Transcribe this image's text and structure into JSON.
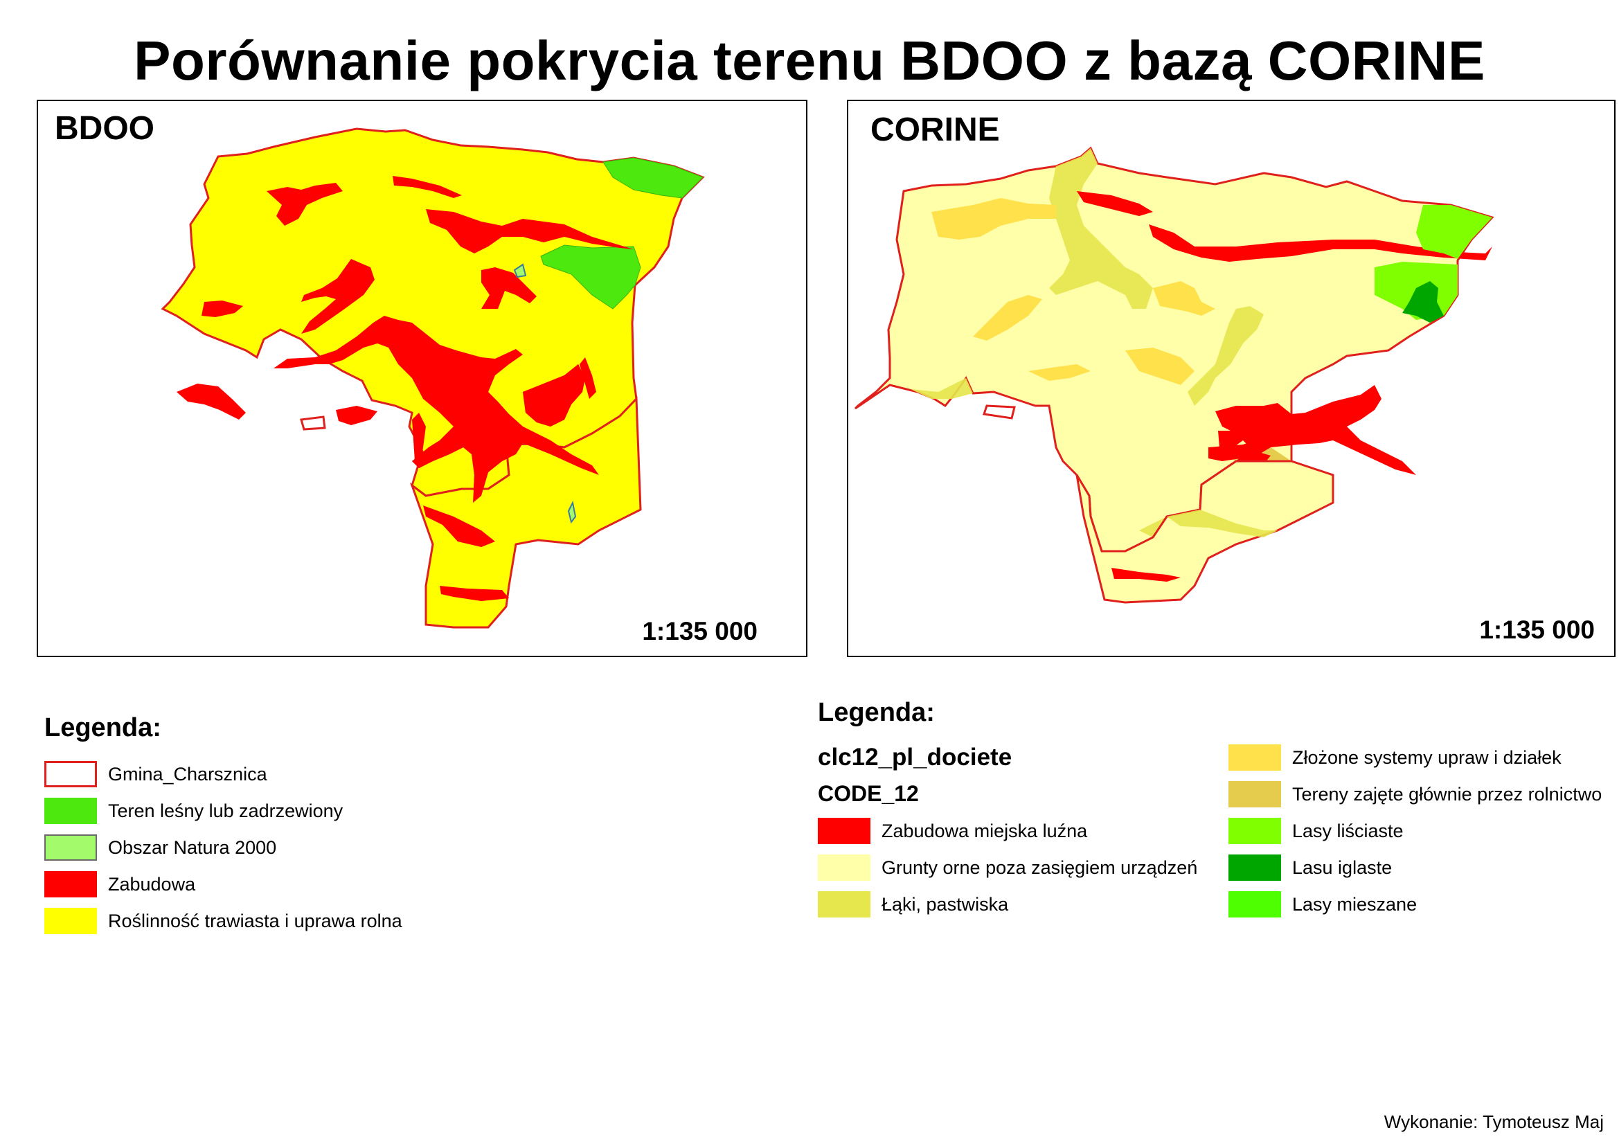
{
  "title": "Porównanie pokrycia terenu BDOO z bazą CORINE",
  "maps": {
    "bdoo": {
      "label": "BDOO",
      "scale": "1:135 000"
    },
    "corine": {
      "label": "CORINE",
      "scale": "1:135 000"
    }
  },
  "legend_bdoo": {
    "title": "Legenda:",
    "items": [
      {
        "label": "Gmina_Charsznica",
        "fill": "#ffffff",
        "stroke": "#e0201c"
      },
      {
        "label": "Teren leśny lub zadrzewiony",
        "fill": "#4de80e",
        "stroke": "#4de80e"
      },
      {
        "label": "Obszar Natura 2000",
        "fill": "#a3fb6b",
        "stroke": "#6a6a6a"
      },
      {
        "label": "Zabudowa",
        "fill": "#ff0000",
        "stroke": "#ff0000"
      },
      {
        "label": "Roślinność trawiasta i uprawa rolna",
        "fill": "#ffff00",
        "stroke": "#ffff00"
      }
    ]
  },
  "legend_corine": {
    "title": "Legenda:",
    "layer": "clc12_pl_dociete",
    "field": "CODE_12",
    "items": [
      {
        "label": "Zabudowa miejska luźna",
        "fill": "#ff0000"
      },
      {
        "label": " Grunty orne poza zasięgiem urządzeń",
        "fill": "#ffffaa"
      },
      {
        "label": "Łąki, pastwiska",
        "fill": "#e6e64d"
      },
      {
        "label": "Złożone systemy upraw i działek",
        "fill": "#ffe14c"
      },
      {
        "label": "Tereny zajęte głównie przez rolnictwo",
        "fill": "#e6cc4d"
      },
      {
        "label": "Lasy liściaste",
        "fill": "#80ff00"
      },
      {
        "label": "Lasu iglaste",
        "fill": "#00a600"
      },
      {
        "label": "Lasy mieszane",
        "fill": "#4dff00"
      }
    ]
  },
  "credit": "Wykonanie: Tymoteusz Maj",
  "colors": {
    "boundary": "#e0201c",
    "bdoo_agri": "#ffff00",
    "bdoo_forest": "#4de80e",
    "built": "#ff0000",
    "corine_arable": "#ffffaa",
    "corine_complex": "#ffe14c",
    "corine_meadow": "#e6e64d",
    "corine_broadleaf": "#80ff00",
    "corine_conifer": "#00a600"
  }
}
